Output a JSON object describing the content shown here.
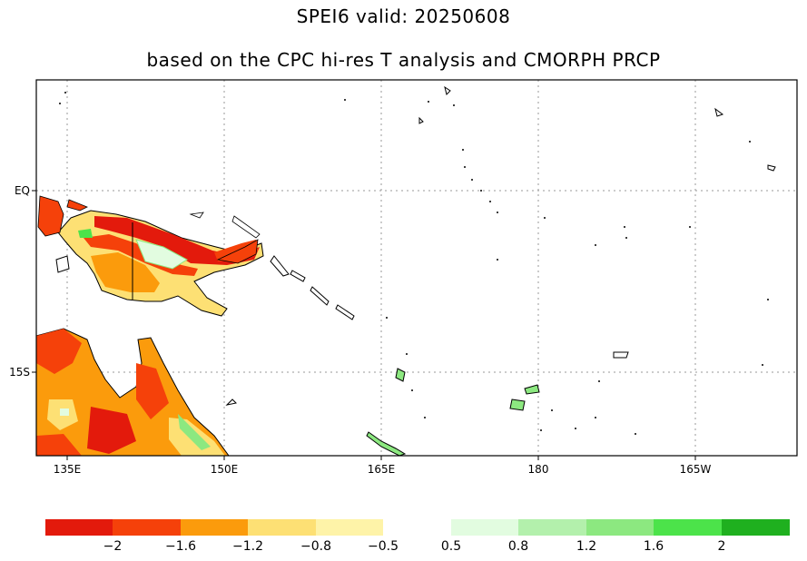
{
  "title": "SPEI6   valid: 20250608",
  "subtitle": "based on the CPC hi-res T analysis and CMORPH PRCP",
  "map": {
    "lon_ticks": [
      "135E",
      "150E",
      "165E",
      "180",
      "165W"
    ],
    "lat_ticks": [
      "EQ",
      "15S"
    ]
  },
  "colorbar": {
    "dry_colors": [
      "#e31a0c",
      "#f5410a",
      "#fb9b0c",
      "#fde074",
      "#fef3a8"
    ],
    "wet_colors": [
      "#e2fce0",
      "#b3f0ac",
      "#8ce880",
      "#4ce34a",
      "#1fb01f"
    ],
    "labels": [
      "−2",
      "−1.6",
      "−1.2",
      "−0.8",
      "−0.5",
      "0.5",
      "0.8",
      "1.2",
      "1.6",
      "2"
    ]
  }
}
